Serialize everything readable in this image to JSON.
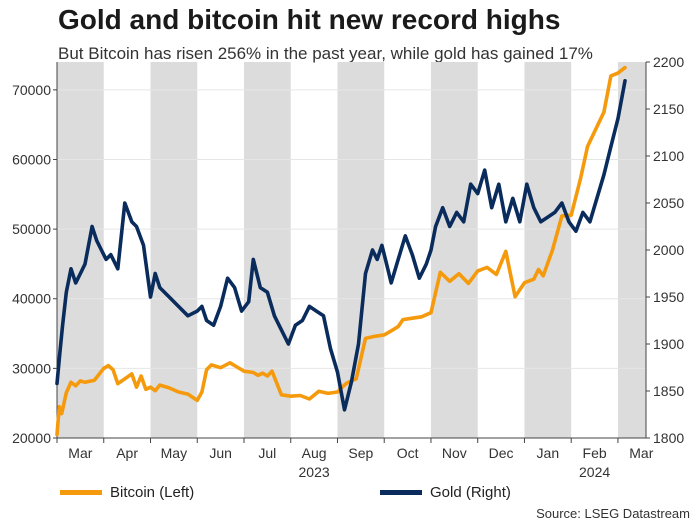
{
  "title": "Gold and bitcoin hit new record highs",
  "subtitle": "But Bitcoin has risen 256% in the past year, while gold has gained 17%",
  "source": "Source: LSEG Datastream",
  "colors": {
    "bitcoin": "#F59A0C",
    "gold": "#0A2C5C",
    "band": "#DCDCDC",
    "grid": "#E6E6E6",
    "axis": "#444444"
  },
  "chart_data": {
    "type": "line",
    "title": "Gold and bitcoin hit new record highs",
    "xlabel": "",
    "x_tick_labels": [
      "Mar",
      "Apr",
      "May",
      "Jun",
      "Jul",
      "Aug",
      "Sep",
      "Oct",
      "Nov",
      "Dec",
      "Jan",
      "Feb",
      "Mar"
    ],
    "x_year_labels": [
      "2023",
      "2024"
    ],
    "x_range_months": [
      0,
      12.6
    ],
    "y_left": {
      "label": "Bitcoin (Left)",
      "lim": [
        20000,
        74000
      ],
      "ticks": [
        20000,
        30000,
        40000,
        50000,
        60000,
        70000
      ]
    },
    "y_right": {
      "label": "Gold (Right)",
      "lim": [
        1800,
        2200
      ],
      "ticks": [
        1800,
        1850,
        1900,
        1950,
        2000,
        2050,
        2100,
        2150,
        2200
      ]
    },
    "legend": [
      "Bitcoin (Left)",
      "Gold (Right)"
    ],
    "series": [
      {
        "name": "Bitcoin (Left)",
        "axis": "left",
        "x": [
          0.0,
          0.05,
          0.1,
          0.2,
          0.3,
          0.4,
          0.5,
          0.6,
          0.8,
          1.0,
          1.1,
          1.2,
          1.3,
          1.45,
          1.6,
          1.7,
          1.8,
          1.9,
          2.0,
          2.1,
          2.2,
          2.4,
          2.6,
          2.8,
          3.0,
          3.1,
          3.2,
          3.3,
          3.5,
          3.7,
          3.85,
          4.0,
          4.2,
          4.3,
          4.4,
          4.5,
          4.6,
          4.8,
          5.0,
          5.2,
          5.4,
          5.6,
          5.8,
          6.0,
          6.1,
          6.2,
          6.4,
          6.6,
          6.8,
          7.0,
          7.2,
          7.3,
          7.4,
          7.6,
          7.8,
          8.0,
          8.2,
          8.4,
          8.6,
          8.8,
          9.0,
          9.2,
          9.4,
          9.6,
          9.8,
          10.0,
          10.2,
          10.3,
          10.4,
          10.6,
          10.8,
          11.0,
          11.2,
          11.35,
          11.5,
          11.7,
          11.85,
          12.0,
          12.15
        ],
        "values": [
          20500,
          24500,
          23500,
          26500,
          28000,
          27500,
          28200,
          28000,
          28300,
          30000,
          30400,
          29800,
          27800,
          28500,
          29200,
          27300,
          28900,
          27000,
          27300,
          26800,
          27600,
          27200,
          26600,
          26300,
          25400,
          26600,
          29800,
          30500,
          30100,
          30800,
          30200,
          29600,
          29400,
          29000,
          29300,
          28900,
          29600,
          26200,
          26000,
          26100,
          25600,
          26700,
          26400,
          26600,
          27300,
          27900,
          28500,
          34300,
          34600,
          34800,
          35600,
          36000,
          37000,
          37200,
          37400,
          38000,
          43800,
          42500,
          43600,
          42200,
          44000,
          44500,
          43500,
          46800,
          40300,
          42300,
          42800,
          44200,
          43300,
          47000,
          51900,
          52000,
          57300,
          61900,
          64000,
          66800,
          72000,
          72400,
          73200
        ]
      },
      {
        "name": "Gold (Right)",
        "axis": "right",
        "x": [
          0.0,
          0.06,
          0.12,
          0.2,
          0.3,
          0.4,
          0.5,
          0.6,
          0.75,
          0.85,
          0.95,
          1.05,
          1.15,
          1.3,
          1.45,
          1.6,
          1.7,
          1.85,
          2.0,
          2.1,
          2.2,
          2.4,
          2.6,
          2.8,
          3.0,
          3.1,
          3.2,
          3.35,
          3.5,
          3.65,
          3.8,
          3.95,
          4.1,
          4.2,
          4.35,
          4.5,
          4.65,
          4.8,
          4.95,
          5.1,
          5.25,
          5.4,
          5.55,
          5.7,
          5.85,
          6.0,
          6.15,
          6.3,
          6.45,
          6.6,
          6.75,
          6.85,
          6.95,
          7.05,
          7.15,
          7.3,
          7.45,
          7.6,
          7.75,
          7.9,
          8.0,
          8.1,
          8.25,
          8.4,
          8.55,
          8.7,
          8.85,
          9.0,
          9.15,
          9.3,
          9.45,
          9.6,
          9.75,
          9.9,
          10.05,
          10.2,
          10.35,
          10.5,
          10.65,
          10.8,
          10.95,
          11.1,
          11.25,
          11.4,
          11.55,
          11.7,
          11.85,
          12.0,
          12.15
        ],
        "values": [
          1858,
          1890,
          1920,
          1955,
          1980,
          1965,
          1975,
          1985,
          2025,
          2010,
          2000,
          1990,
          1995,
          1980,
          2050,
          2030,
          2025,
          2005,
          1950,
          1975,
          1960,
          1950,
          1940,
          1930,
          1935,
          1940,
          1925,
          1920,
          1940,
          1970,
          1960,
          1935,
          1945,
          1990,
          1960,
          1955,
          1930,
          1915,
          1900,
          1920,
          1925,
          1940,
          1935,
          1930,
          1895,
          1870,
          1830,
          1860,
          1900,
          1975,
          2000,
          1990,
          2005,
          1985,
          1965,
          1990,
          2015,
          1995,
          1970,
          1985,
          2000,
          2025,
          2045,
          2025,
          2040,
          2030,
          2070,
          2060,
          2085,
          2045,
          2070,
          2030,
          2055,
          2030,
          2070,
          2045,
          2030,
          2035,
          2040,
          2050,
          2030,
          2020,
          2040,
          2030,
          2055,
          2080,
          2110,
          2140,
          2180
        ]
      }
    ]
  }
}
